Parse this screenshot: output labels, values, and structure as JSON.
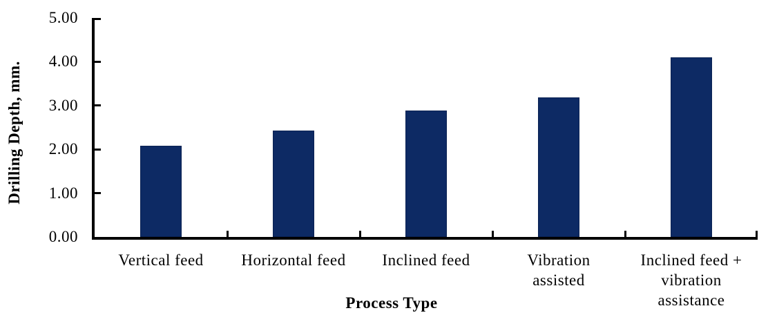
{
  "figure": {
    "background_color": "#ffffff",
    "text_color": "#000000"
  },
  "chart_data": {
    "type": "bar",
    "title": "",
    "xlabel": "Process Type",
    "ylabel": "Drilling Depth, mm.",
    "categories": [
      "Vertical feed",
      "Horizontal feed",
      "Inclined feed",
      "Vibration\nassisted",
      "Inclined feed +\nvibration\nassistance"
    ],
    "values": [
      2.08,
      2.43,
      2.89,
      3.19,
      4.1
    ],
    "ylim": [
      0,
      5
    ],
    "y_tick_step": 1,
    "y_tick_labels": [
      "0.00",
      "1.00",
      "2.00",
      "3.00",
      "4.00",
      "5.00"
    ],
    "grid": false,
    "legend_position": "none",
    "bar_color": "#0d2a64",
    "bar_border_color": "#0a2152",
    "axis_color": "#000000",
    "tick_style": "inside"
  }
}
